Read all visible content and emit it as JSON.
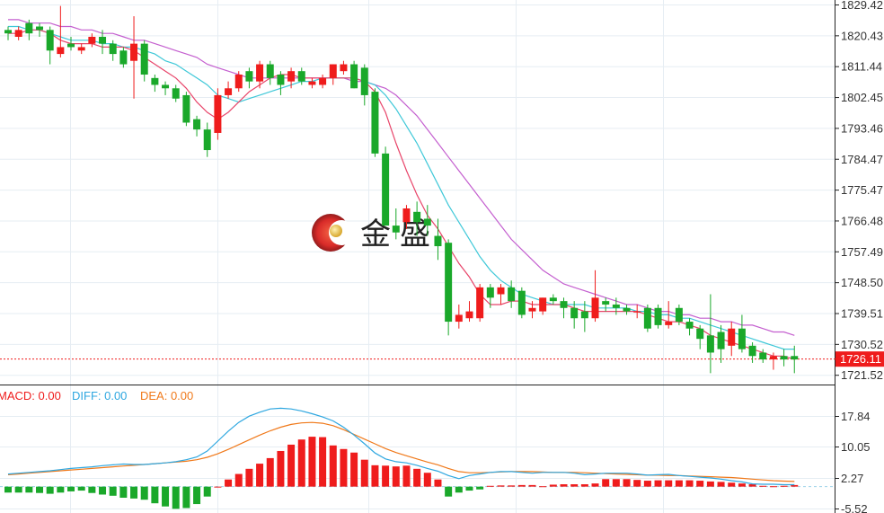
{
  "chart_data": {
    "type": "candlestick",
    "ylim": [
      1718,
      1832
    ],
    "ma_colors": {
      "ma5": "#e8456a",
      "ma10": "#3fc8d8",
      "ma20": "#c45fcf"
    },
    "colors": {
      "up": "#ef1c1c",
      "down": "#1aa82a",
      "current_line": "#ef1c1c",
      "diff": "#2ea7e0",
      "dea": "#f0791a"
    },
    "yticks": [
      "1829.42",
      "1820.43",
      "1811.44",
      "1802.45",
      "1793.46",
      "1784.47",
      "1775.47",
      "1766.48",
      "1757.49",
      "1748.50",
      "1739.51",
      "1730.52",
      "1721.52"
    ],
    "current_price": "1726.11",
    "current_price_value": 1726.11,
    "candles": [
      [
        1822,
        1821,
        1823,
        1819
      ],
      [
        1820,
        1822,
        1823,
        1819
      ],
      [
        1824,
        1821,
        1825,
        1819
      ],
      [
        1823,
        1822,
        1824,
        1820
      ],
      [
        1822,
        1816,
        1823,
        1812
      ],
      [
        1815,
        1817,
        1829,
        1814
      ],
      [
        1818,
        1817,
        1820,
        1816
      ],
      [
        1816,
        1817,
        1818,
        1815
      ],
      [
        1818,
        1820,
        1821,
        1817
      ],
      [
        1820,
        1818,
        1822,
        1815
      ],
      [
        1818,
        1815,
        1819,
        1813
      ],
      [
        1816,
        1812,
        1817,
        1811
      ],
      [
        1813,
        1818,
        1826,
        1802
      ],
      [
        1818,
        1809,
        1819,
        1807
      ],
      [
        1808,
        1806,
        1809,
        1804
      ],
      [
        1806,
        1805,
        1807,
        1803
      ],
      [
        1805,
        1802,
        1806,
        1801
      ],
      [
        1803,
        1795,
        1804,
        1794
      ],
      [
        1796,
        1793,
        1797,
        1791
      ],
      [
        1793,
        1787,
        1795,
        1785
      ],
      [
        1792,
        1803,
        1805,
        1790
      ],
      [
        1803,
        1805,
        1807,
        1802
      ],
      [
        1805,
        1809,
        1810,
        1804
      ],
      [
        1810,
        1807,
        1811,
        1805
      ],
      [
        1807,
        1812,
        1813,
        1805
      ],
      [
        1812,
        1808,
        1813,
        1806
      ],
      [
        1809,
        1806,
        1810,
        1803
      ],
      [
        1807,
        1810,
        1811,
        1805
      ],
      [
        1810,
        1807,
        1811,
        1806
      ],
      [
        1806,
        1807,
        1808,
        1805
      ],
      [
        1806,
        1808,
        1809,
        1805
      ],
      [
        1808,
        1812,
        1812,
        1806
      ],
      [
        1810,
        1812,
        1813,
        1809
      ],
      [
        1812,
        1805,
        1813,
        1805
      ],
      [
        1811,
        1803,
        1812,
        1800
      ],
      [
        1804,
        1786,
        1805,
        1785
      ],
      [
        1786,
        1765,
        1788,
        1765
      ],
      [
        1765,
        1763,
        1770,
        1761
      ],
      [
        1766,
        1770,
        1771,
        1764
      ],
      [
        1769,
        1766,
        1772,
        1762
      ],
      [
        1767,
        1765,
        1771,
        1762
      ],
      [
        1762,
        1759,
        1767,
        1755
      ],
      [
        1760,
        1737,
        1761,
        1733
      ],
      [
        1737,
        1739,
        1742,
        1735
      ],
      [
        1738,
        1740,
        1743,
        1737
      ],
      [
        1738,
        1747,
        1748,
        1737
      ],
      [
        1747,
        1744,
        1748,
        1741
      ],
      [
        1745,
        1747,
        1748,
        1742
      ],
      [
        1747,
        1743,
        1749,
        1741
      ],
      [
        1746,
        1739,
        1747,
        1738
      ],
      [
        1740,
        1741,
        1743,
        1738
      ],
      [
        1740,
        1744,
        1744,
        1739
      ],
      [
        1744,
        1743,
        1745,
        1742
      ],
      [
        1743,
        1741,
        1744,
        1738
      ],
      [
        1741,
        1738,
        1743,
        1735
      ],
      [
        1740,
        1738,
        1743,
        1734
      ],
      [
        1738,
        1744,
        1752,
        1737
      ],
      [
        1743,
        1742,
        1744,
        1740
      ],
      [
        1742,
        1741,
        1744,
        1739
      ],
      [
        1741,
        1740,
        1742,
        1739
      ],
      [
        1740,
        1740,
        1742,
        1738
      ],
      [
        1741,
        1735,
        1742,
        1734
      ],
      [
        1741,
        1736,
        1742,
        1735
      ],
      [
        1736,
        1737,
        1743,
        1735
      ],
      [
        1741,
        1737,
        1742,
        1736
      ],
      [
        1737,
        1735,
        1738,
        1733
      ],
      [
        1735,
        1732,
        1736,
        1729
      ],
      [
        1733,
        1728,
        1745,
        1722
      ],
      [
        1734,
        1729,
        1736,
        1725
      ],
      [
        1730,
        1735,
        1737,
        1727
      ],
      [
        1735,
        1729,
        1739,
        1728
      ],
      [
        1730,
        1727,
        1731,
        1725
      ],
      [
        1728,
        1726,
        1729,
        1725
      ],
      [
        1726,
        1727,
        1728,
        1723
      ],
      [
        1727,
        1726,
        1729,
        1724
      ],
      [
        1727,
        1726,
        1730,
        1722
      ]
    ],
    "ma5": [
      1821,
      1821,
      1822,
      1822,
      1821,
      1819,
      1818,
      1818,
      1818,
      1817,
      1817,
      1817,
      1816,
      1814,
      1812,
      1810,
      1808,
      1805,
      1801,
      1798,
      1796,
      1798,
      1801,
      1804,
      1806,
      1808,
      1809,
      1809,
      1808,
      1808,
      1808,
      1808,
      1808,
      1808,
      1807,
      1804,
      1798,
      1789,
      1781,
      1774,
      1768,
      1764,
      1759,
      1754,
      1750,
      1745,
      1742,
      1742,
      1743,
      1743,
      1742,
      1742,
      1742,
      1742,
      1741,
      1740,
      1740,
      1740,
      1740,
      1740,
      1740,
      1739,
      1738,
      1737,
      1737,
      1736,
      1735,
      1733,
      1732,
      1731,
      1730,
      1729,
      1728,
      1727,
      1727,
      1726
    ],
    "ma10": [
      1823,
      1823,
      1822,
      1822,
      1821,
      1820,
      1819,
      1819,
      1819,
      1818,
      1818,
      1817,
      1817,
      1816,
      1815,
      1813,
      1812,
      1810,
      1808,
      1806,
      1803,
      1802,
      1801,
      1802,
      1803,
      1804,
      1805,
      1806,
      1807,
      1807,
      1808,
      1808,
      1808,
      1808,
      1807,
      1806,
      1803,
      1799,
      1794,
      1789,
      1783,
      1777,
      1771,
      1766,
      1761,
      1756,
      1752,
      1749,
      1747,
      1745,
      1744,
      1743,
      1742,
      1742,
      1742,
      1742,
      1741,
      1741,
      1741,
      1741,
      1740,
      1740,
      1739,
      1739,
      1738,
      1738,
      1737,
      1736,
      1735,
      1734,
      1733,
      1732,
      1731,
      1730,
      1729,
      1729
    ],
    "ma20": [
      1825,
      1825,
      1824,
      1824,
      1824,
      1823,
      1823,
      1822,
      1822,
      1821,
      1821,
      1820,
      1819,
      1819,
      1818,
      1817,
      1816,
      1815,
      1814,
      1812,
      1811,
      1810,
      1809,
      1808,
      1808,
      1808,
      1808,
      1808,
      1808,
      1808,
      1808,
      1808,
      1808,
      1807,
      1807,
      1806,
      1805,
      1803,
      1800,
      1797,
      1793,
      1789,
      1785,
      1781,
      1777,
      1773,
      1769,
      1765,
      1761,
      1758,
      1755,
      1752,
      1750,
      1748,
      1747,
      1746,
      1745,
      1744,
      1743,
      1742,
      1742,
      1741,
      1740,
      1740,
      1739,
      1739,
      1738,
      1738,
      1737,
      1737,
      1736,
      1736,
      1735,
      1734,
      1734,
      1733
    ],
    "macd": {
      "legend": [
        {
          "label": "MACD: 0.00",
          "color": "#ef1c1c"
        },
        {
          "label": "DIFF: 0.00",
          "color": "#2ea7e0"
        },
        {
          "label": "DEA: 0.00",
          "color": "#f0791a"
        }
      ],
      "yticks": [
        "17.84",
        "10.05",
        "2.27",
        "-5.52"
      ],
      "ylim": [
        -6.5,
        20.5
      ],
      "hist": [
        -1.5,
        -1.5,
        -1.5,
        -1.6,
        -1.8,
        -1.5,
        -1.2,
        -1,
        -1.6,
        -2,
        -2.3,
        -2.8,
        -3,
        -3.3,
        -4.2,
        -5,
        -5.6,
        -5.4,
        -4.4,
        -2.5,
        0,
        1.8,
        3.2,
        4.5,
        5.8,
        7.2,
        9,
        10.6,
        11.9,
        12.6,
        12.5,
        10.4,
        9.5,
        8.6,
        6.8,
        5.4,
        5.3,
        5.1,
        5.3,
        4.5,
        3.5,
        1.8,
        -2.5,
        -1.5,
        -1,
        -0.7,
        0.2,
        0.3,
        0.3,
        0.4,
        0.4,
        0.1,
        0.5,
        0.6,
        0.6,
        0.6,
        0.8,
        1.9,
        1.9,
        1.9,
        1.7,
        1.5,
        1.6,
        1.6,
        1.6,
        1.6,
        1.5,
        1.3,
        1.2,
        1,
        0.8,
        0.6,
        0.2,
        0.1,
        0.2,
        0.4
      ],
      "diff": [
        3.2,
        3.4,
        3.6,
        3.8,
        4.0,
        4.3,
        4.6,
        4.8,
        5.0,
        5.3,
        5.5,
        5.7,
        5.6,
        5.6,
        5.8,
        6.0,
        6.3,
        6.8,
        7.5,
        9.0,
        11.5,
        14.0,
        16.2,
        17.8,
        18.8,
        19.6,
        19.8,
        19.6,
        19.1,
        18.4,
        17.6,
        16.6,
        15.0,
        13.0,
        10.8,
        8.5,
        7.0,
        6.3,
        6.0,
        5.4,
        4.6,
        3.9,
        2.8,
        2.0,
        2.8,
        3.2,
        3.6,
        3.8,
        3.8,
        3.6,
        3.4,
        3.6,
        3.6,
        3.6,
        3.4,
        3.0,
        3.2,
        3.4,
        3.4,
        3.4,
        3.2,
        2.9,
        3.0,
        3.1,
        2.8,
        2.6,
        2.4,
        2.2,
        1.9,
        1.5,
        1.2,
        0.7,
        0.6,
        0.6,
        0.5,
        0.5
      ],
      "dea": [
        3.0,
        3.2,
        3.4,
        3.6,
        3.8,
        4.0,
        4.2,
        4.4,
        4.6,
        4.8,
        5.0,
        5.2,
        5.4,
        5.6,
        5.8,
        6.0,
        6.2,
        6.4,
        6.8,
        7.4,
        8.3,
        9.4,
        10.6,
        11.8,
        13.0,
        14.1,
        15.0,
        15.7,
        16.1,
        16.2,
        16.0,
        15.4,
        14.4,
        13.2,
        12.0,
        10.8,
        9.6,
        8.6,
        7.8,
        7.0,
        6.2,
        5.5,
        4.6,
        3.8,
        3.5,
        3.5,
        3.6,
        3.7,
        3.8,
        3.8,
        3.8,
        3.7,
        3.6,
        3.6,
        3.6,
        3.5,
        3.4,
        3.3,
        3.2,
        3.1,
        3.0,
        2.9,
        2.9,
        2.8,
        2.8,
        2.7,
        2.6,
        2.5,
        2.4,
        2.3,
        2.1,
        1.9,
        1.7,
        1.5,
        1.4,
        1.3
      ]
    }
  },
  "watermark": {
    "text": "金盛"
  }
}
